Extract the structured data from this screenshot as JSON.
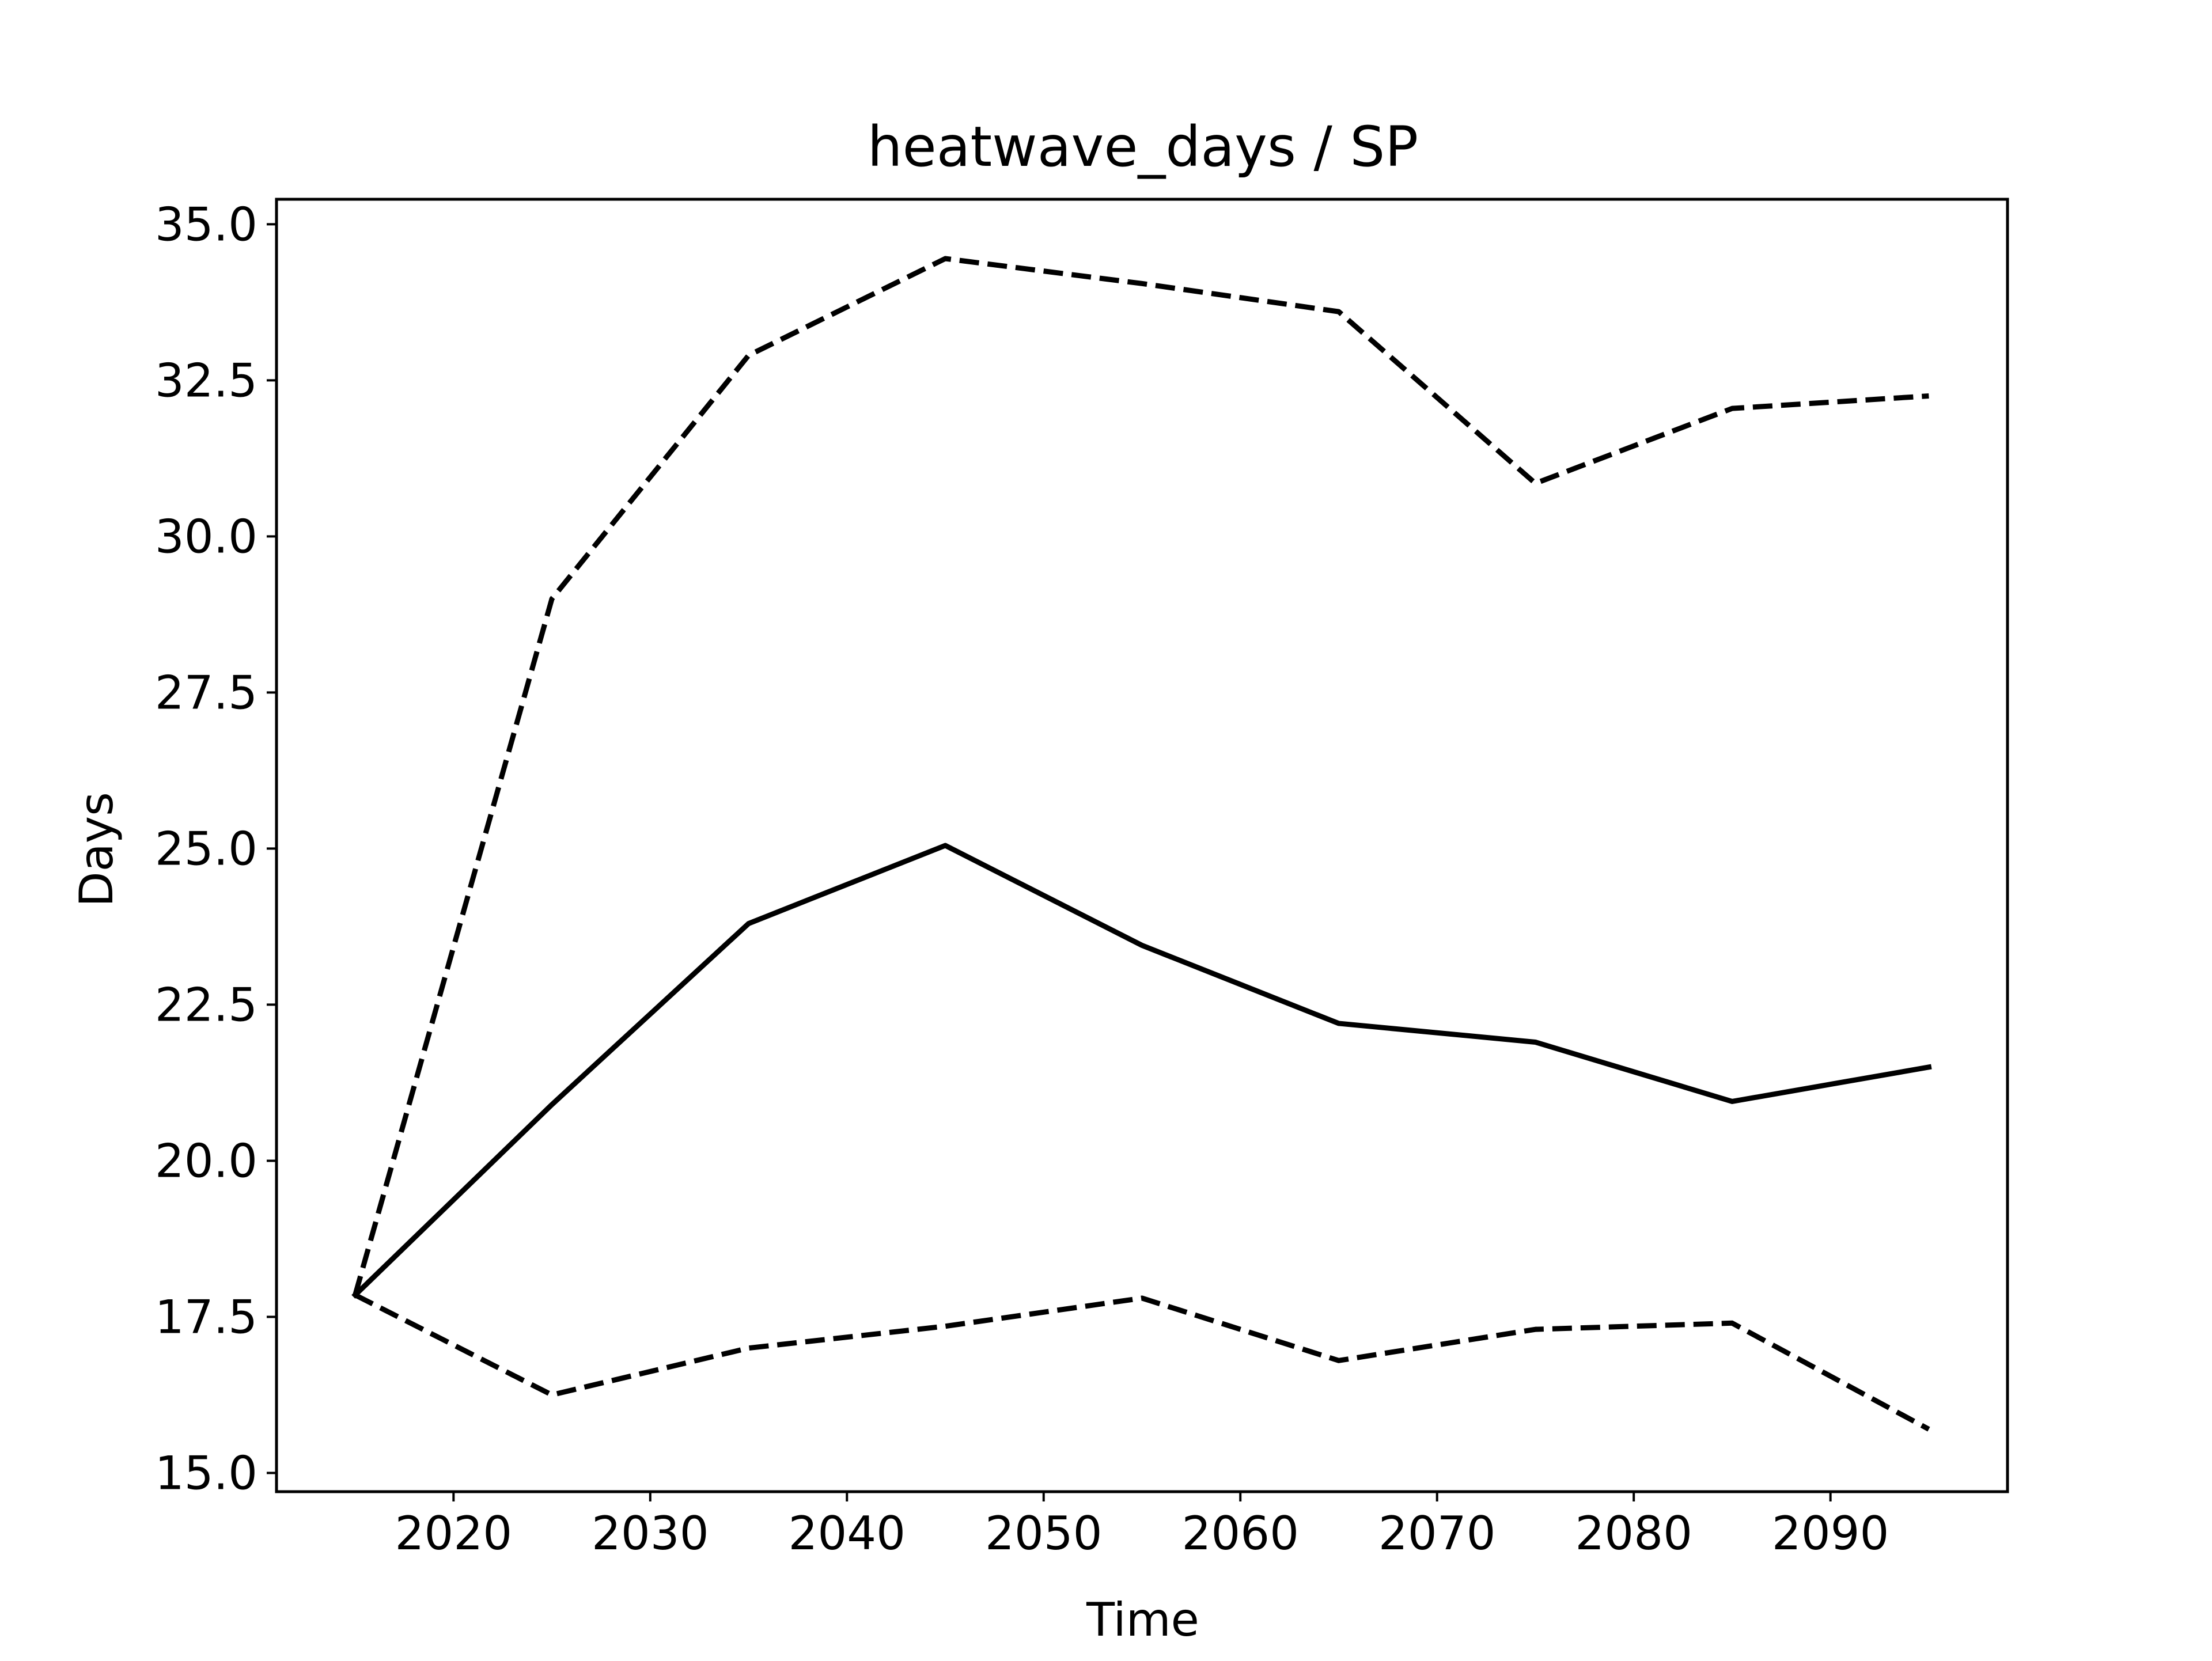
{
  "chart_data": {
    "type": "line",
    "title": "heatwave_days / SP",
    "xlabel": "Time",
    "ylabel": "Days",
    "x": [
      2015,
      2025,
      2035,
      2045,
      2055,
      2065,
      2075,
      2085,
      2095
    ],
    "xlim": [
      2011,
      2099
    ],
    "ylim": [
      14.7,
      35.4
    ],
    "xticks": [
      2020,
      2030,
      2040,
      2050,
      2060,
      2070,
      2080,
      2090
    ],
    "yticks": [
      15.0,
      17.5,
      20.0,
      22.5,
      25.0,
      27.5,
      30.0,
      32.5,
      35.0
    ],
    "xtick_labels": [
      "2020",
      "2030",
      "2040",
      "2050",
      "2060",
      "2070",
      "2080",
      "2090"
    ],
    "ytick_labels": [
      "15.0",
      "17.5",
      "20.0",
      "22.5",
      "25.0",
      "27.5",
      "30.0",
      "32.5",
      "35.0"
    ],
    "grid": false,
    "series": [
      {
        "style": "solid",
        "color": "#000000",
        "values": [
          17.85,
          20.9,
          23.8,
          25.05,
          23.45,
          22.2,
          21.9,
          20.95,
          21.5
        ]
      },
      {
        "style": "dashed",
        "color": "#000000",
        "values": [
          17.85,
          29.0,
          32.9,
          34.45,
          34.05,
          33.6,
          30.85,
          32.05,
          32.25
        ]
      },
      {
        "style": "dashed",
        "color": "#000000",
        "values": [
          17.85,
          16.25,
          17.0,
          17.35,
          17.8,
          16.8,
          17.3,
          17.4,
          15.7
        ]
      }
    ]
  }
}
